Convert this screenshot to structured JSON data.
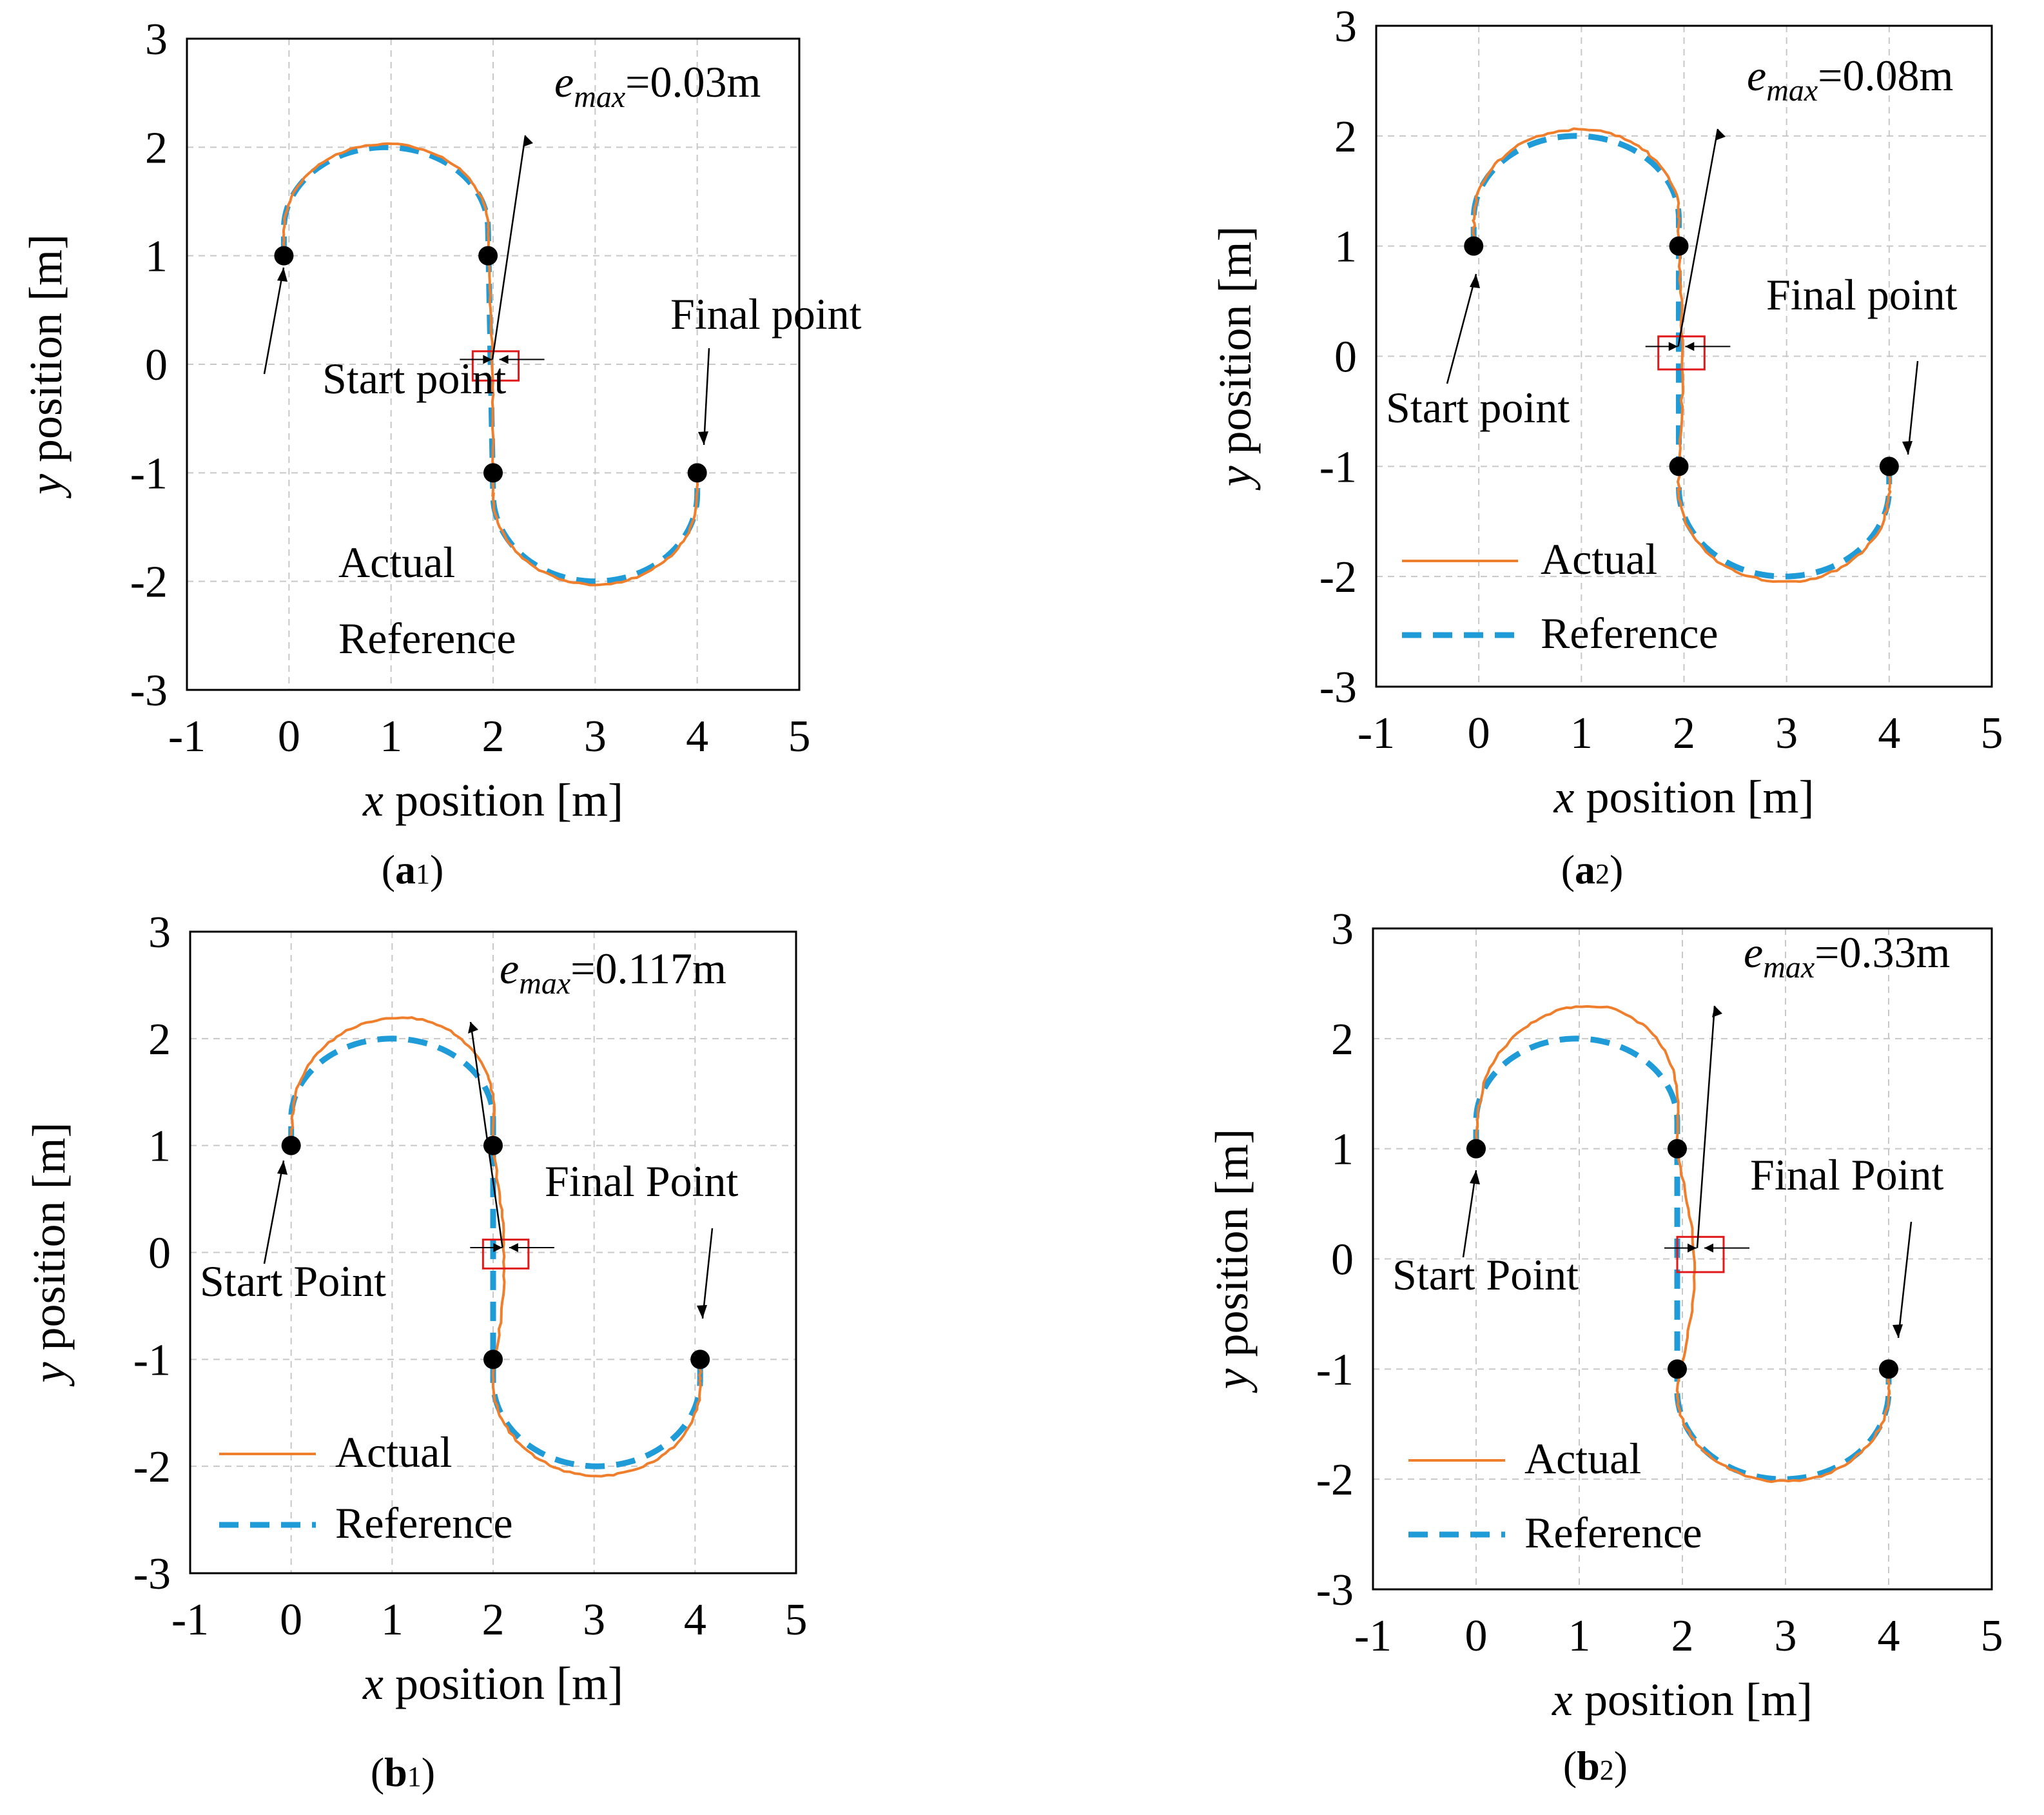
{
  "colors": {
    "actual": "#f07f2d",
    "reference": "#1f9bd7",
    "marker": "#000000",
    "box": "#e0191b",
    "grid": "#c8c8c8"
  },
  "labels": {
    "xlabel_var": "x",
    "xlabel_rest": " position [m]",
    "ylabel_var": "y",
    "ylabel_rest": " position [m]",
    "emax_sym": "e",
    "emax_sub": "max",
    "legend_actual": "Actual",
    "legend_reference": "Reference"
  },
  "chart_data": [
    {
      "id": "a1",
      "type": "line",
      "panel_label": {
        "letter": "a",
        "number": "1"
      },
      "xlim": [
        -1,
        5
      ],
      "ylim": [
        -3,
        3
      ],
      "xticks": [
        "-1",
        "0",
        "1",
        "2",
        "3",
        "4",
        "5"
      ],
      "yticks": [
        "3",
        "2",
        "1",
        "0",
        "-1",
        "-2",
        "-3"
      ],
      "grid": true,
      "emax_value": "=0.03m",
      "start_label": "Start point",
      "final_label": "Final point",
      "waypoints": [
        [
          -0.05,
          1
        ],
        [
          1.95,
          1
        ],
        [
          2,
          -1
        ],
        [
          4,
          -1
        ]
      ],
      "error_box": {
        "x": [
          1.8,
          2.25
        ],
        "y": [
          -0.15,
          0.12
        ]
      },
      "deviation": {
        "outward": 0.03,
        "downward": 0.03,
        "noise": 0.012
      },
      "legend_lines_shown": false
    },
    {
      "id": "a2",
      "type": "line",
      "panel_label": {
        "letter": "a",
        "number": "2"
      },
      "xlim": [
        -1,
        5
      ],
      "ylim": [
        -3,
        3
      ],
      "xticks": [
        "-1",
        "0",
        "1",
        "2",
        "3",
        "4",
        "5"
      ],
      "yticks": [
        "3",
        "2",
        "1",
        "0",
        "-1",
        "-2",
        "-3"
      ],
      "grid": true,
      "emax_value": "=0.08m",
      "start_label": "Start point",
      "final_label": "Final point",
      "waypoints": [
        [
          -0.05,
          1
        ],
        [
          1.95,
          1
        ],
        [
          1.95,
          -1
        ],
        [
          4,
          -1
        ]
      ],
      "error_box": {
        "x": [
          1.75,
          2.2
        ],
        "y": [
          -0.12,
          0.18
        ]
      },
      "deviation": {
        "outward": 0.06,
        "downward": 0.05,
        "noise": 0.022
      },
      "legend_lines_shown": true
    },
    {
      "id": "b1",
      "type": "line",
      "panel_label": {
        "letter": "b",
        "number": "1"
      },
      "xlim": [
        -1,
        5
      ],
      "ylim": [
        -3,
        3
      ],
      "xticks": [
        "-1",
        "0",
        "1",
        "2",
        "3",
        "4",
        "5"
      ],
      "yticks": [
        "3",
        "2",
        "1",
        "0",
        "-1",
        "-2",
        "-3"
      ],
      "grid": true,
      "emax_value": "=0.117m",
      "start_label": "Start Point",
      "final_label": "Final Point",
      "waypoints": [
        [
          0,
          1
        ],
        [
          2,
          1
        ],
        [
          2,
          -1
        ],
        [
          4.05,
          -1
        ]
      ],
      "error_box": {
        "x": [
          1.9,
          2.35
        ],
        "y": [
          -0.15,
          0.12
        ]
      },
      "deviation": {
        "outward": 0.2,
        "downward": 0.09,
        "noise": 0.016
      },
      "legend_lines_shown": true
    },
    {
      "id": "b2",
      "type": "line",
      "panel_label": {
        "letter": "b",
        "number": "2"
      },
      "xlim": [
        -1,
        5
      ],
      "ylim": [
        -3,
        3
      ],
      "xticks": [
        "-1",
        "0",
        "1",
        "2",
        "3",
        "4",
        "5"
      ],
      "yticks": [
        "3",
        "2",
        "1",
        "0",
        "-1",
        "-2",
        "-3"
      ],
      "grid": true,
      "emax_value": "=0.33m",
      "start_label": "Start Point",
      "final_label": "Final Point",
      "waypoints": [
        [
          0,
          1
        ],
        [
          1.95,
          1
        ],
        [
          1.95,
          -1
        ],
        [
          4,
          -1
        ]
      ],
      "error_box": {
        "x": [
          1.95,
          2.4
        ],
        "y": [
          -0.12,
          0.2
        ]
      },
      "deviation": {
        "outward": 0.3,
        "downward": 0.02,
        "noise": 0.018
      },
      "legend_lines_shown": true
    }
  ]
}
